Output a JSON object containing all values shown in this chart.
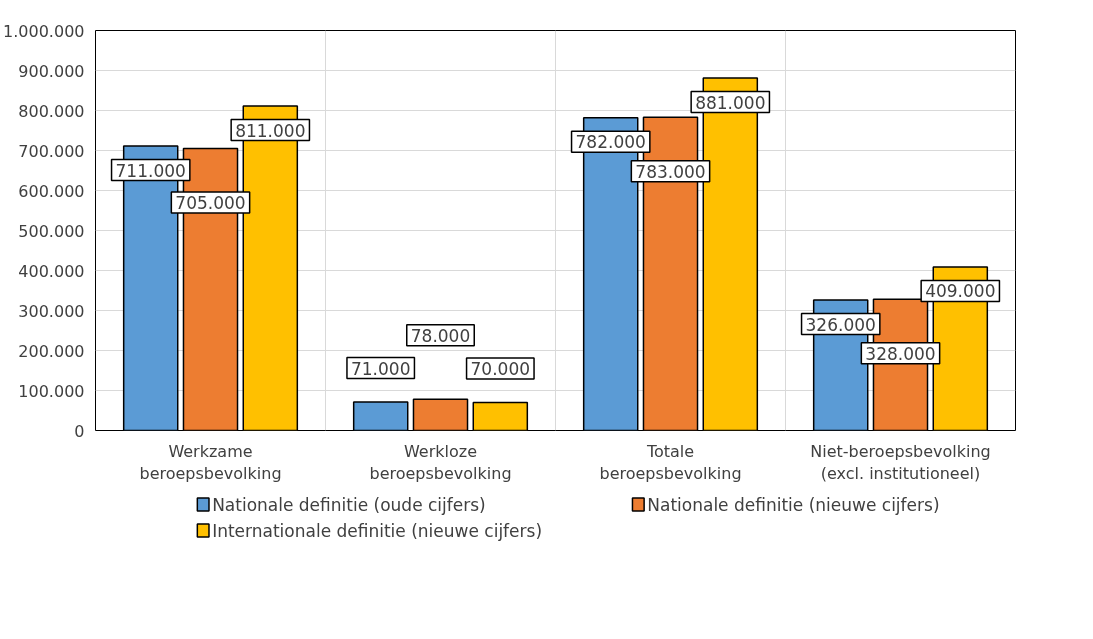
{
  "chart_data": {
    "type": "bar",
    "categories": [
      "Werkzame beroepsbevolking",
      "Werkloze beroepsbevolking",
      "Totale beroepsbevolking",
      "Niet-beroepsbevolking (excl. institutioneel)"
    ],
    "series": [
      {
        "name": "Nationale definitie (oude cijfers)",
        "color": "#5b9bd5",
        "values": [
          711000,
          71000,
          782000,
          326000
        ]
      },
      {
        "name": "Nationale definitie (nieuwe cijfers)",
        "color": "#ed7d31",
        "values": [
          705000,
          78000,
          783000,
          328000
        ]
      },
      {
        "name": "Internationale definitie (nieuwe cijfers)",
        "color": "#ffc000",
        "values": [
          811000,
          70000,
          881000,
          409000
        ]
      }
    ],
    "ylim": [
      0,
      1000000
    ],
    "yticks": [
      0,
      {
        "value": 100000,
        "label": "100.000"
      },
      {
        "value": 200000,
        "label": "200.000"
      },
      {
        "value": 300000,
        "label": "300.000"
      },
      {
        "value": 400000,
        "label": "400.000"
      },
      {
        "value": 500000,
        "label": "500.000"
      },
      {
        "value": 600000,
        "label": "600.000"
      },
      {
        "value": 700000,
        "label": "700.000"
      },
      {
        "value": 800000,
        "label": "800.000"
      },
      {
        "value": 900000,
        "label": "900.000"
      },
      {
        "value": 1000000,
        "label": "1.000.000"
      }
    ],
    "value_labels": [
      [
        "711.000",
        "71.000",
        "782.000",
        "326.000"
      ],
      [
        "705.000",
        "78.000",
        "783.000",
        "328.000"
      ],
      [
        "811.000",
        "70.000",
        "881.000",
        "409.000"
      ]
    ],
    "grid": true,
    "legend": "bottom"
  }
}
